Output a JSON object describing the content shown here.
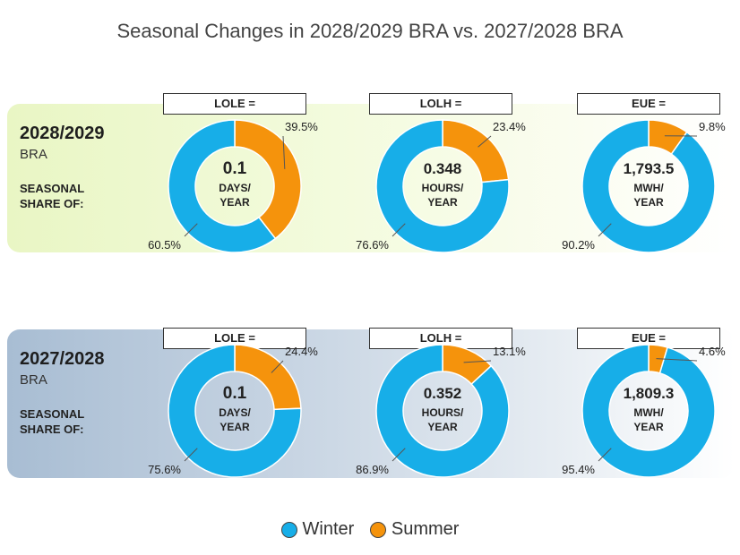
{
  "title": "Seasonal Changes in 2028/2029 BRA vs. 2027/2028 BRA",
  "colors": {
    "winter": "#17aee8",
    "summer": "#f5930c"
  },
  "seasonal_text": [
    "SEASONAL",
    "SHARE OF:"
  ],
  "legend": {
    "winter": "Winter",
    "summer": "Summer"
  },
  "chart_data": [
    {
      "type": "pie",
      "panel": "2028/2029",
      "panel_sub": "BRA",
      "charts": [
        {
          "label": "LOLE =",
          "value": "0.1",
          "unit": [
            "DAYS/",
            "YEAR"
          ],
          "winter": 60.5,
          "summer": 39.5,
          "winter_label": "60.5%",
          "summer_label": "39.5%"
        },
        {
          "label": "LOLH =",
          "value": "0.348",
          "unit": [
            "HOURS/",
            "YEAR"
          ],
          "winter": 76.6,
          "summer": 23.4,
          "winter_label": "76.6%",
          "summer_label": "23.4%"
        },
        {
          "label": "EUE =",
          "value": "1,793.5",
          "unit": [
            "MWH/",
            "YEAR"
          ],
          "winter": 90.2,
          "summer": 9.8,
          "winter_label": "90.2%",
          "summer_label": "9.8%"
        }
      ]
    },
    {
      "type": "pie",
      "panel": "2027/2028",
      "panel_sub": "BRA",
      "charts": [
        {
          "label": "LOLE =",
          "value": "0.1",
          "unit": [
            "DAYS/",
            "YEAR"
          ],
          "winter": 75.6,
          "summer": 24.4,
          "winter_label": "75.6%",
          "summer_label": "24.4%"
        },
        {
          "label": "LOLH =",
          "value": "0.352",
          "unit": [
            "HOURS/",
            "YEAR"
          ],
          "winter": 86.9,
          "summer": 13.1,
          "winter_label": "86.9%",
          "summer_label": "13.1%"
        },
        {
          "label": "EUE =",
          "value": "1,809.3",
          "unit": [
            "MWH/",
            "YEAR"
          ],
          "winter": 95.4,
          "summer": 4.6,
          "winter_label": "95.4%",
          "summer_label": "4.6%"
        }
      ]
    }
  ]
}
